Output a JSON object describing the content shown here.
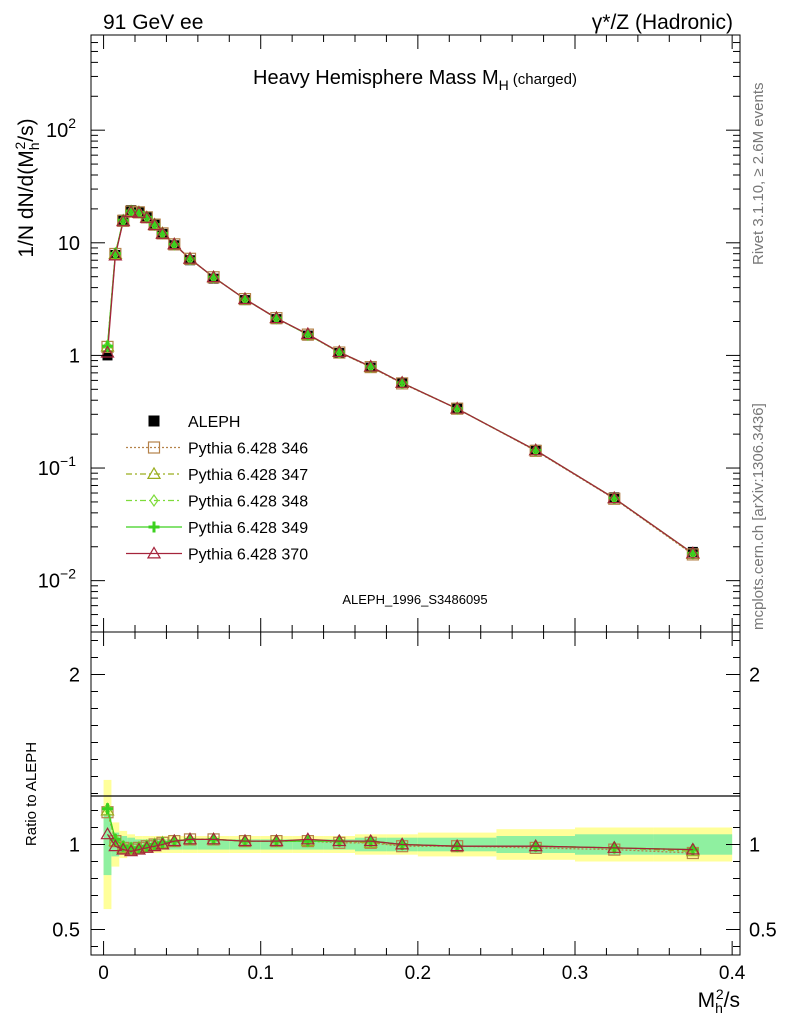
{
  "header": {
    "left": "91 GeV ee",
    "right": "γ*/Z (Hadronic)"
  },
  "side": {
    "rivet": "Rivet 3.1.10, ≥ 2.6M events",
    "mcplots": "mcplots.cern.ch [arXiv:1306.3436]"
  },
  "chart_data": {
    "type": "line",
    "title": "Heavy Hemisphere Mass M",
    "title_sub": "H",
    "title_suffix": "(charged)",
    "watermark": "ALEPH_1996_S3486095",
    "xlabel_main": "M",
    "xlabel_sub": "h",
    "xlabel_sup": "2",
    "xlabel_tail": "/s",
    "ylabel": "1/N dN/d(M",
    "ylabel_sub": "h",
    "ylabel_sup": "2",
    "ylabel_tail": "/s)",
    "ratio_ylabel": "Ratio to ALEPH",
    "xlim": [
      -0.008,
      0.405
    ],
    "ylim": [
      0.0035,
      700
    ],
    "yscale": "log",
    "ratio_ylim": [
      0.35,
      2.25
    ],
    "x_ticks": [
      "0",
      "0.1",
      "0.2",
      "0.3",
      "0.4"
    ],
    "y_ticks": [
      "10^-2",
      "10^-1",
      "1",
      "10",
      "10^2"
    ],
    "ratio_ticks": [
      "0.5",
      "1",
      "2"
    ],
    "x": [
      0.0025,
      0.0075,
      0.0125,
      0.0175,
      0.0225,
      0.0275,
      0.0325,
      0.0375,
      0.045,
      0.055,
      0.07,
      0.09,
      0.11,
      0.13,
      0.15,
      0.17,
      0.19,
      0.225,
      0.275,
      0.325,
      0.375
    ],
    "data": {
      "name": "ALEPH",
      "values": [
        1.0,
        7.8,
        16.0,
        19.5,
        19.0,
        17.0,
        14.5,
        12.0,
        9.5,
        7.0,
        4.8,
        3.1,
        2.1,
        1.5,
        1.05,
        0.78,
        0.57,
        0.34,
        0.145,
        0.055,
        0.018
      ],
      "ratio_band_inner": [
        0.18,
        0.07,
        0.05,
        0.04,
        0.03,
        0.03,
        0.03,
        0.03,
        0.03,
        0.03,
        0.03,
        0.03,
        0.03,
        0.03,
        0.03,
        0.04,
        0.04,
        0.04,
        0.05,
        0.06,
        0.06
      ],
      "ratio_band_outer": [
        0.38,
        0.13,
        0.08,
        0.06,
        0.05,
        0.05,
        0.05,
        0.05,
        0.05,
        0.05,
        0.05,
        0.05,
        0.05,
        0.05,
        0.05,
        0.06,
        0.06,
        0.07,
        0.09,
        0.1,
        0.1
      ]
    },
    "series": [
      {
        "name": "Pythia 6.428 346",
        "color": "#b5824a",
        "marker": "square",
        "dash": "2,2",
        "ratio": [
          1.19,
          1.02,
          0.98,
          0.97,
          0.98,
          0.99,
          1.0,
          1.01,
          1.02,
          1.03,
          1.03,
          1.02,
          1.02,
          1.02,
          1.01,
          1.01,
          0.99,
          0.99,
          0.98,
          0.97,
          0.95
        ]
      },
      {
        "name": "Pythia 6.428 347",
        "color": "#9aad1e",
        "marker": "triangle",
        "dash": "6,3,2,3",
        "ratio": [
          1.2,
          1.02,
          0.98,
          0.97,
          0.98,
          0.99,
          1.0,
          1.01,
          1.02,
          1.03,
          1.03,
          1.02,
          1.02,
          1.02,
          1.02,
          1.01,
          1.0,
          0.99,
          0.99,
          0.98,
          0.96
        ]
      },
      {
        "name": "Pythia 6.428 348",
        "color": "#7edc3a",
        "marker": "diamond",
        "dash": "6,3,2,3",
        "ratio": [
          1.21,
          1.03,
          0.99,
          0.98,
          0.98,
          0.99,
          1.0,
          1.01,
          1.02,
          1.03,
          1.03,
          1.02,
          1.02,
          1.02,
          1.02,
          1.02,
          1.0,
          0.99,
          0.99,
          0.98,
          0.97
        ]
      },
      {
        "name": "Pythia 6.428 349",
        "color": "#3cd11f",
        "marker": "cross",
        "dash": "",
        "ratio": [
          1.21,
          1.03,
          0.99,
          0.98,
          0.98,
          0.99,
          1.0,
          1.01,
          1.02,
          1.03,
          1.03,
          1.02,
          1.02,
          1.02,
          1.02,
          1.02,
          1.0,
          0.99,
          0.99,
          0.98,
          0.97
        ]
      },
      {
        "name": "Pythia 6.428 370",
        "color": "#a5243c",
        "marker": "triangle",
        "dash": "",
        "ratio": [
          1.06,
          0.99,
          0.97,
          0.96,
          0.97,
          0.98,
          0.99,
          1.0,
          1.02,
          1.03,
          1.03,
          1.02,
          1.02,
          1.03,
          1.02,
          1.02,
          1.0,
          0.99,
          0.99,
          0.98,
          0.97
        ]
      }
    ]
  }
}
